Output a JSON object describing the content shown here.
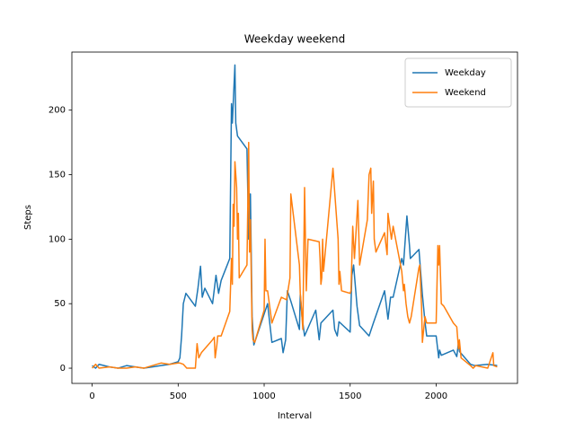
{
  "chart_data": {
    "type": "line",
    "title": "Weekday weekend",
    "xlabel": "Interval",
    "ylabel": "Steps",
    "xlim": [
      -118,
      2473
    ],
    "ylim": [
      -11.8,
      245
    ],
    "xticks": [
      0,
      500,
      1000,
      1500,
      2000
    ],
    "yticks": [
      0,
      50,
      100,
      150,
      200
    ],
    "legend": "upper right",
    "series": [
      {
        "name": "Weekday",
        "color": "#1f77b4",
        "x": [
          0,
          20,
          40,
          100,
          150,
          200,
          250,
          300,
          350,
          400,
          450,
          500,
          510,
          520,
          530,
          545,
          600,
          615,
          630,
          640,
          655,
          700,
          720,
          735,
          750,
          800,
          810,
          815,
          830,
          835,
          845,
          900,
          910,
          920,
          930,
          940,
          1000,
          1020,
          1045,
          1100,
          1110,
          1125,
          1135,
          1155,
          1205,
          1210,
          1220,
          1235,
          1300,
          1320,
          1330,
          1400,
          1410,
          1425,
          1435,
          1500,
          1510,
          1520,
          1535,
          1540,
          1555,
          1610,
          1635,
          1700,
          1720,
          1735,
          1750,
          1800,
          1810,
          1830,
          1845,
          1850,
          1900,
          1920,
          1935,
          1945,
          2000,
          2015,
          2020,
          2030,
          2100,
          2120,
          2130,
          2135,
          2200,
          2225,
          2300,
          2355
        ],
        "values": [
          2,
          0,
          3,
          1,
          0,
          2,
          1,
          0,
          1,
          2,
          3,
          5,
          8,
          25,
          50,
          58,
          48,
          62,
          79,
          55,
          62,
          50,
          72,
          58,
          68,
          85,
          205,
          190,
          235,
          190,
          180,
          170,
          100,
          135,
          40,
          18,
          42,
          50,
          20,
          23,
          12,
          22,
          60,
          52,
          30,
          57,
          40,
          25,
          45,
          22,
          35,
          45,
          30,
          25,
          36,
          28,
          72,
          80,
          56,
          48,
          33,
          25,
          35,
          60,
          38,
          55,
          55,
          85,
          80,
          118,
          95,
          85,
          92,
          57,
          36,
          25,
          25,
          8,
          14,
          10,
          14,
          9,
          20,
          13,
          3,
          2,
          3,
          2
        ]
      },
      {
        "name": "Weekend",
        "color": "#ff7f0e",
        "x": [
          0,
          20,
          40,
          100,
          150,
          200,
          250,
          300,
          350,
          400,
          450,
          500,
          510,
          530,
          550,
          600,
          610,
          620,
          635,
          700,
          710,
          715,
          725,
          730,
          750,
          800,
          810,
          815,
          820,
          825,
          830,
          840,
          845,
          850,
          855,
          900,
          910,
          915,
          920,
          930,
          935,
          945,
          1000,
          1005,
          1010,
          1020,
          1030,
          1045,
          1100,
          1130,
          1150,
          1155,
          1205,
          1210,
          1215,
          1225,
          1235,
          1245,
          1255,
          1320,
          1325,
          1330,
          1335,
          1340,
          1345,
          1400,
          1430,
          1435,
          1440,
          1450,
          1500,
          1505,
          1515,
          1525,
          1545,
          1555,
          1600,
          1610,
          1620,
          1625,
          1635,
          1640,
          1650,
          1700,
          1715,
          1720,
          1740,
          1750,
          1800,
          1810,
          1815,
          1825,
          1835,
          1845,
          1855,
          1900,
          1905,
          1915,
          1920,
          1935,
          1945,
          2000,
          2010,
          2015,
          2020,
          2030,
          2045,
          2100,
          2120,
          2130,
          2135,
          2145,
          2200,
          2215,
          2230,
          2300,
          2330,
          2335,
          2355
        ],
        "values": [
          0,
          3,
          0,
          1,
          0,
          0,
          1,
          0,
          2,
          4,
          3,
          4,
          4,
          3,
          0,
          0,
          19,
          8,
          12,
          22,
          24,
          8,
          18,
          25,
          25,
          44,
          85,
          65,
          127,
          110,
          160,
          140,
          100,
          120,
          70,
          80,
          175,
          90,
          115,
          30,
          22,
          20,
          45,
          100,
          60,
          60,
          50,
          35,
          55,
          53,
          70,
          135,
          80,
          58,
          50,
          30,
          140,
          60,
          100,
          98,
          85,
          65,
          70,
          100,
          75,
          155,
          100,
          65,
          75,
          60,
          58,
          60,
          110,
          85,
          130,
          80,
          115,
          150,
          155,
          120,
          145,
          100,
          90,
          105,
          88,
          120,
          100,
          110,
          75,
          60,
          65,
          50,
          40,
          35,
          40,
          78,
          80,
          48,
          20,
          40,
          35,
          35,
          95,
          80,
          95,
          50,
          48,
          35,
          32,
          15,
          22,
          8,
          2,
          0,
          2,
          0,
          12,
          2,
          1
        ]
      }
    ]
  }
}
